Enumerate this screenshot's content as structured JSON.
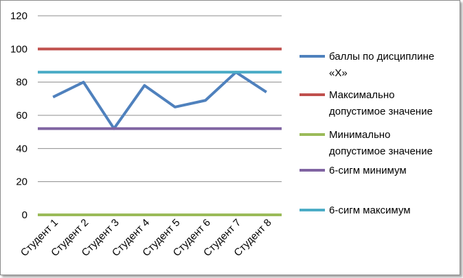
{
  "chart_data": {
    "type": "line",
    "categories": [
      "Студент 1",
      "Студент 2",
      "Студент 3",
      "Студент 4",
      "Студент 5",
      "Студент 6",
      "Студент 7",
      "Студент 8"
    ],
    "ylim": [
      0,
      120
    ],
    "yticks": [
      0,
      20,
      40,
      60,
      80,
      100,
      120
    ],
    "grid": true,
    "legend_position": "right",
    "series": [
      {
        "name_lines": [
          "баллы по дисциплине",
          "«Х»"
        ],
        "color": "#4f81bd",
        "values": [
          71,
          80,
          52,
          78,
          65,
          69,
          86,
          74
        ]
      },
      {
        "name_lines": [
          "Максимально",
          "допустимое значение"
        ],
        "color": "#c0504d",
        "values": [
          100,
          100,
          100,
          100,
          100,
          100,
          100,
          100
        ]
      },
      {
        "name_lines": [
          "Минимально",
          "допустимое значение"
        ],
        "color": "#9bbb59",
        "values": [
          0,
          0,
          0,
          0,
          0,
          0,
          0,
          0
        ]
      },
      {
        "name_lines": [
          "6-сигм минимум"
        ],
        "color": "#8064a2",
        "values": [
          52,
          52,
          52,
          52,
          52,
          52,
          52,
          52
        ]
      },
      {
        "name_lines": [
          "6-сигм максимум"
        ],
        "color": "#4bacc6",
        "values": [
          86,
          86,
          86,
          86,
          86,
          86,
          86,
          86
        ]
      }
    ]
  }
}
